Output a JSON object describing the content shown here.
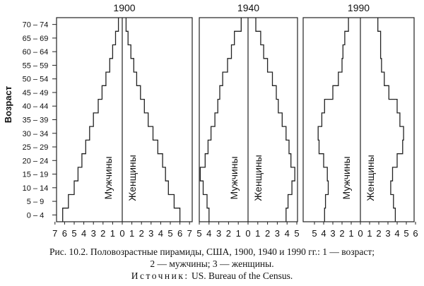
{
  "chart_data": {
    "type": "population-pyramid",
    "y_axis": {
      "label": "Возраст",
      "ticks": [
        "0 – 4",
        "5 – 9",
        "10 – 14",
        "15 – 19",
        "20 – 24",
        "25 – 29",
        "30 – 34",
        "35 – 39",
        "40 – 44",
        "45 – 49",
        "50 – 54",
        "55 – 59",
        "60 – 64",
        "65 – 69",
        "70 – 74"
      ]
    },
    "panels": [
      {
        "title": "1900",
        "x_ticks_left": [
          "7",
          "6",
          "5",
          "4",
          "3",
          "2",
          "1",
          "0"
        ],
        "x_ticks_right": [
          "0",
          "1",
          "2",
          "3",
          "4",
          "5",
          "6",
          "7"
        ],
        "max": 7,
        "label_left": "Мужчины",
        "label_right": "Женщины",
        "male": [
          6.2,
          5.6,
          5.0,
          4.6,
          4.2,
          3.8,
          3.4,
          3.0,
          2.5,
          2.1,
          1.7,
          1.3,
          1.0,
          0.7,
          0.4
        ],
        "female": [
          6.0,
          5.4,
          4.8,
          4.5,
          4.2,
          3.7,
          3.2,
          2.7,
          2.3,
          1.9,
          1.5,
          1.2,
          0.9,
          0.6,
          0.4
        ]
      },
      {
        "title": "1940",
        "x_ticks_left": [
          "5",
          "4",
          "3",
          "2",
          "1",
          "0"
        ],
        "x_ticks_right": [
          "0",
          "1",
          "2",
          "3",
          "4",
          "5"
        ],
        "max": 5,
        "label_left": "Мужчины",
        "label_right": "Женщины",
        "male": [
          4.0,
          4.2,
          4.6,
          4.9,
          4.4,
          4.1,
          3.8,
          3.4,
          3.1,
          2.9,
          2.6,
          2.1,
          1.7,
          1.4,
          0.7
        ],
        "female": [
          3.9,
          4.1,
          4.5,
          4.8,
          4.4,
          4.2,
          3.9,
          3.5,
          3.1,
          2.9,
          2.5,
          2.0,
          1.6,
          1.3,
          0.8
        ]
      },
      {
        "title": "1990",
        "x_ticks_left": [
          "5",
          "4",
          "3",
          "2",
          "1",
          "0"
        ],
        "x_ticks_right": [
          "0",
          "1",
          "2",
          "3",
          "4",
          "5",
          "6"
        ],
        "max": 6,
        "label_left": "Мужчины",
        "label_right": "Женщины",
        "male": [
          3.9,
          3.8,
          3.5,
          3.6,
          4.0,
          4.5,
          4.6,
          4.2,
          3.9,
          3.0,
          2.4,
          2.0,
          1.9,
          1.7,
          1.3
        ],
        "female": [
          3.8,
          3.6,
          3.3,
          3.5,
          4.0,
          4.6,
          4.7,
          4.3,
          4.0,
          3.1,
          2.6,
          2.3,
          2.2,
          2.2,
          1.9
        ]
      }
    ]
  },
  "caption": {
    "line1": "Рис. 10.2. Половозрастные пирамиды, США, 1900, 1940 и 1990 гг.: 1 — возраст;",
    "line2": "2 — мужчины; 3 — женщины.",
    "source_label": "Источник:",
    "source_text": " US. Bureau of the Census."
  }
}
